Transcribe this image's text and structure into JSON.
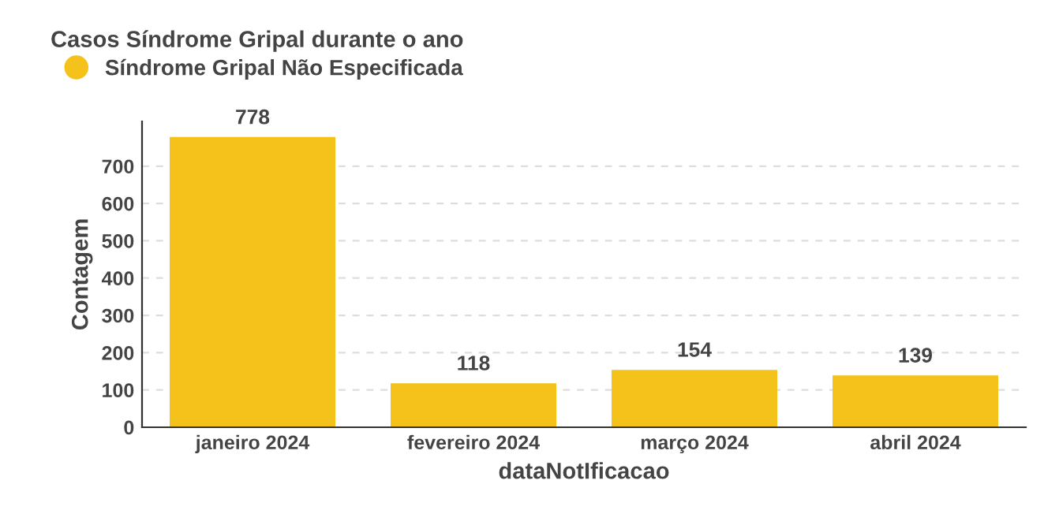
{
  "chart_data": {
    "type": "bar",
    "title": "Casos Síndrome Gripal durante o ano",
    "categories": [
      "janeiro 2024",
      "fevereiro 2024",
      "março 2024",
      "abril 2024"
    ],
    "series": [
      {
        "name": "Síndrome Gripal Não Especificada",
        "color": "#f5c21b",
        "values": [
          778,
          118,
          154,
          139
        ]
      }
    ],
    "xlabel": "dataNotIficacao",
    "ylabel": "Contagem",
    "ylim": [
      0,
      820
    ],
    "yticks": [
      0,
      100,
      200,
      300,
      400,
      500,
      600,
      700
    ],
    "grid": "y",
    "legend": "top left",
    "data_labels": true
  }
}
